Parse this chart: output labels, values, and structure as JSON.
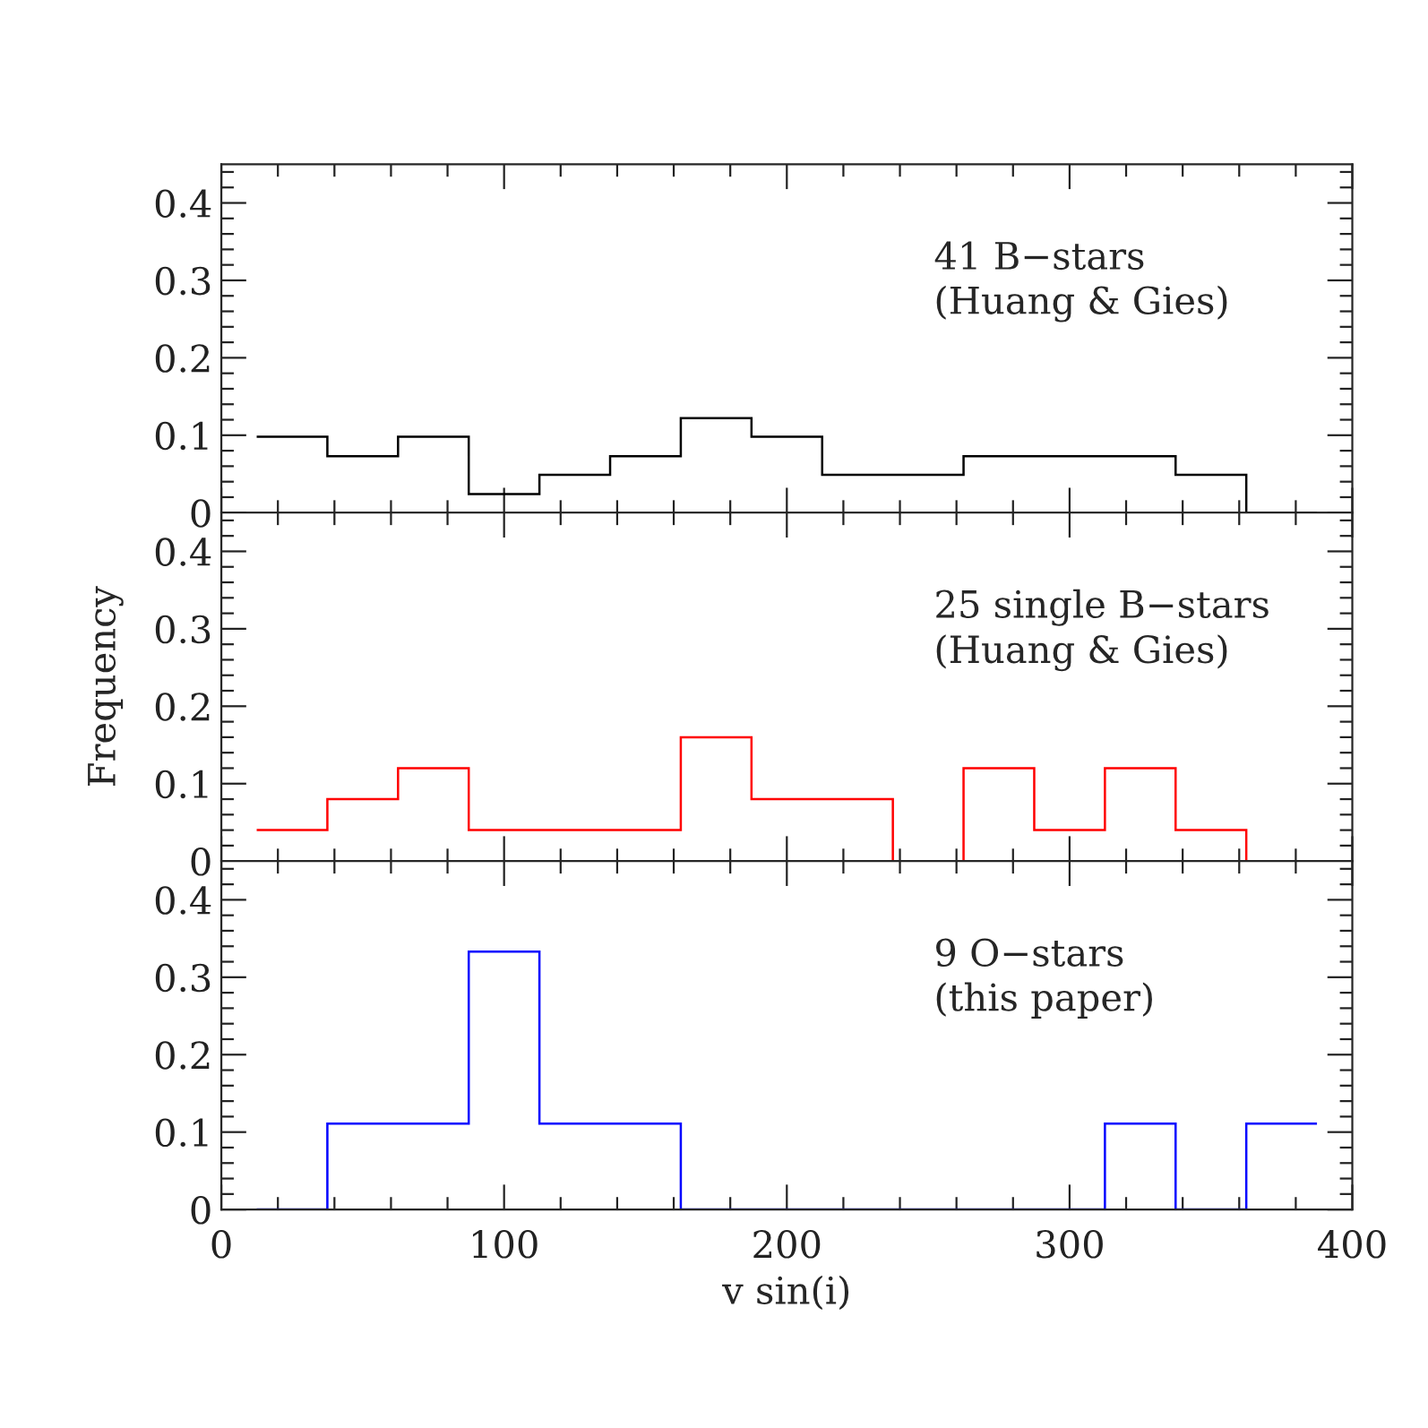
{
  "chart_data": [
    {
      "type": "histogram",
      "bins": [
        12.5,
        37.5,
        62.5,
        87.5,
        112.5,
        137.5,
        162.5,
        187.5,
        212.5,
        237.5,
        262.5,
        287.5,
        312.5,
        337.5,
        362.5,
        387.5
      ],
      "series": [
        {
          "color": "#000000",
          "values": [
            0.098,
            0.073,
            0.098,
            0.024,
            0.049,
            0.073,
            0.122,
            0.098,
            0.049,
            0.049,
            0.073,
            0.073,
            0.073,
            0.049,
            0
          ]
        }
      ],
      "annotations": [
        "41 B−stars\n(Huang & Gies)"
      ],
      "xlim": [
        0,
        400
      ],
      "ylim": [
        0,
        0.45
      ],
      "xticks": [
        0,
        {
          "value": 20,
          "label": null
        },
        {
          "value": 40,
          "label": null
        },
        {
          "value": 60,
          "label": null
        },
        {
          "value": 80,
          "label": null
        },
        100,
        {
          "value": 120,
          "label": null
        },
        {
          "value": 140,
          "label": null
        },
        {
          "value": 160,
          "label": null
        },
        {
          "value": 180,
          "label": null
        },
        200,
        {
          "value": 220,
          "label": null
        },
        {
          "value": 240,
          "label": null
        },
        {
          "value": 260,
          "label": null
        },
        {
          "value": 280,
          "label": null
        },
        300,
        {
          "value": 320,
          "label": null
        },
        {
          "value": 340,
          "label": null
        },
        {
          "value": 360,
          "label": null
        },
        {
          "value": 380,
          "label": null
        },
        400
      ],
      "yticks": [
        0,
        {
          "value": 0.02,
          "label": null
        },
        {
          "value": 0.04,
          "label": null
        },
        {
          "value": 0.06,
          "label": null
        },
        {
          "value": 0.08,
          "label": null
        },
        0.1,
        {
          "value": 0.12,
          "label": null
        },
        {
          "value": 0.14,
          "label": null
        },
        {
          "value": 0.16,
          "label": null
        },
        {
          "value": 0.18,
          "label": null
        },
        0.2,
        {
          "value": 0.22,
          "label": null
        },
        {
          "value": 0.24,
          "label": null
        },
        {
          "value": 0.26,
          "label": null
        },
        {
          "value": 0.28,
          "label": null
        },
        0.3,
        {
          "value": 0.32,
          "label": null
        },
        {
          "value": 0.34,
          "label": null
        },
        {
          "value": 0.36,
          "label": null
        },
        {
          "value": 0.38,
          "label": null
        },
        0.4,
        {
          "value": 0.42,
          "label": null
        },
        {
          "value": 0.44,
          "label": null
        }
      ],
      "tick_labels": "y"
    },
    {
      "type": "histogram",
      "bins": [
        12.5,
        37.5,
        62.5,
        87.5,
        112.5,
        137.5,
        162.5,
        187.5,
        212.5,
        237.5,
        262.5,
        287.5,
        312.5,
        337.5,
        362.5,
        387.5
      ],
      "series": [
        {
          "color": "#ff0000",
          "values": [
            0.04,
            0.08,
            0.12,
            0.04,
            0.04,
            0.04,
            0.16,
            0.08,
            0.08,
            0,
            0.12,
            0.04,
            0.12,
            0.04,
            0
          ]
        }
      ],
      "annotations": [
        "25 single B−stars\n(Huang & Gies)"
      ],
      "ylabel": "Frequency",
      "xlim": [
        0,
        400
      ],
      "ylim": [
        0,
        0.45
      ],
      "xticks": [
        0,
        {
          "value": 20,
          "label": null
        },
        {
          "value": 40,
          "label": null
        },
        {
          "value": 60,
          "label": null
        },
        {
          "value": 80,
          "label": null
        },
        100,
        {
          "value": 120,
          "label": null
        },
        {
          "value": 140,
          "label": null
        },
        {
          "value": 160,
          "label": null
        },
        {
          "value": 180,
          "label": null
        },
        200,
        {
          "value": 220,
          "label": null
        },
        {
          "value": 240,
          "label": null
        },
        {
          "value": 260,
          "label": null
        },
        {
          "value": 280,
          "label": null
        },
        300,
        {
          "value": 320,
          "label": null
        },
        {
          "value": 340,
          "label": null
        },
        {
          "value": 360,
          "label": null
        },
        {
          "value": 380,
          "label": null
        },
        400
      ],
      "yticks": [
        0,
        {
          "value": 0.02,
          "label": null
        },
        {
          "value": 0.04,
          "label": null
        },
        {
          "value": 0.06,
          "label": null
        },
        {
          "value": 0.08,
          "label": null
        },
        0.1,
        {
          "value": 0.12,
          "label": null
        },
        {
          "value": 0.14,
          "label": null
        },
        {
          "value": 0.16,
          "label": null
        },
        {
          "value": 0.18,
          "label": null
        },
        0.2,
        {
          "value": 0.22,
          "label": null
        },
        {
          "value": 0.24,
          "label": null
        },
        {
          "value": 0.26,
          "label": null
        },
        {
          "value": 0.28,
          "label": null
        },
        0.3,
        {
          "value": 0.32,
          "label": null
        },
        {
          "value": 0.34,
          "label": null
        },
        {
          "value": 0.36,
          "label": null
        },
        {
          "value": 0.38,
          "label": null
        },
        0.4,
        {
          "value": 0.42,
          "label": null
        },
        {
          "value": 0.44,
          "label": null
        }
      ],
      "tick_labels": "y"
    },
    {
      "type": "histogram",
      "bins": [
        12.5,
        37.5,
        62.5,
        87.5,
        112.5,
        137.5,
        162.5,
        187.5,
        212.5,
        237.5,
        262.5,
        287.5,
        312.5,
        337.5,
        362.5,
        387.5
      ],
      "series": [
        {
          "color": "#0000ff",
          "values": [
            0,
            0.111,
            0.111,
            0.333,
            0.111,
            0.111,
            0,
            0,
            0,
            0,
            0,
            0,
            0.111,
            0,
            0.111
          ]
        }
      ],
      "annotations": [
        "9 O−stars\n(this paper)"
      ],
      "xlabel": "v sin(i)",
      "xlim": [
        0,
        400
      ],
      "ylim": [
        0,
        0.45
      ],
      "xticks": [
        0,
        {
          "value": 20,
          "label": null
        },
        {
          "value": 40,
          "label": null
        },
        {
          "value": 60,
          "label": null
        },
        {
          "value": 80,
          "label": null
        },
        100,
        {
          "value": 120,
          "label": null
        },
        {
          "value": 140,
          "label": null
        },
        {
          "value": 160,
          "label": null
        },
        {
          "value": 180,
          "label": null
        },
        200,
        {
          "value": 220,
          "label": null
        },
        {
          "value": 240,
          "label": null
        },
        {
          "value": 260,
          "label": null
        },
        {
          "value": 280,
          "label": null
        },
        300,
        {
          "value": 320,
          "label": null
        },
        {
          "value": 340,
          "label": null
        },
        {
          "value": 360,
          "label": null
        },
        {
          "value": 380,
          "label": null
        },
        400
      ],
      "yticks": [
        0,
        {
          "value": 0.02,
          "label": null
        },
        {
          "value": 0.04,
          "label": null
        },
        {
          "value": 0.06,
          "label": null
        },
        {
          "value": 0.08,
          "label": null
        },
        0.1,
        {
          "value": 0.12,
          "label": null
        },
        {
          "value": 0.14,
          "label": null
        },
        {
          "value": 0.16,
          "label": null
        },
        {
          "value": 0.18,
          "label": null
        },
        0.2,
        {
          "value": 0.22,
          "label": null
        },
        {
          "value": 0.24,
          "label": null
        },
        {
          "value": 0.26,
          "label": null
        },
        {
          "value": 0.28,
          "label": null
        },
        0.3,
        {
          "value": 0.32,
          "label": null
        },
        {
          "value": 0.34,
          "label": null
        },
        {
          "value": 0.36,
          "label": null
        },
        {
          "value": 0.38,
          "label": null
        },
        0.4,
        {
          "value": 0.42,
          "label": null
        },
        {
          "value": 0.44,
          "label": null
        }
      ]
    }
  ]
}
